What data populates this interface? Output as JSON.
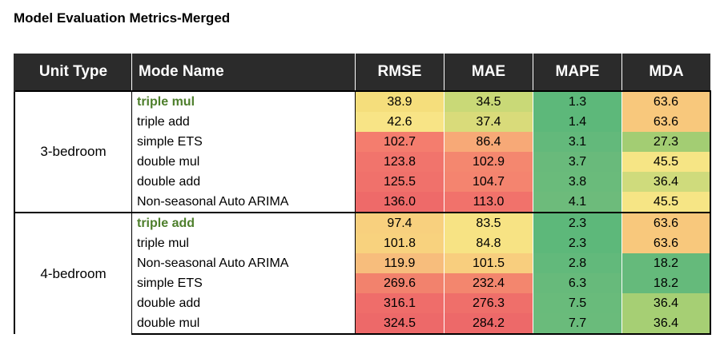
{
  "title": "Model Evaluation Metrics-Merged",
  "columns": [
    "Unit Type",
    "Mode Name",
    "RMSE",
    "MAE",
    "MAPE",
    "MDA"
  ],
  "groups": [
    {
      "unit": "3-bedroom",
      "rows": [
        {
          "mode": "triple mul",
          "best": true,
          "values": [
            "38.9",
            "34.5",
            "1.3",
            "63.6"
          ],
          "colors": [
            "#f5de7c",
            "#c9d977",
            "#5db87a",
            "#f8c87c"
          ]
        },
        {
          "mode": "triple add",
          "best": false,
          "values": [
            "42.6",
            "37.4",
            "1.4",
            "63.6"
          ],
          "colors": [
            "#f8e486",
            "#d9db7a",
            "#5db87a",
            "#f8c87c"
          ]
        },
        {
          "mode": "simple ETS",
          "best": false,
          "values": [
            "102.7",
            "86.4",
            "3.1",
            "27.3"
          ],
          "colors": [
            "#f47d6e",
            "#f7a977",
            "#63b97b",
            "#a3cd73"
          ]
        },
        {
          "mode": "double mul",
          "best": false,
          "values": [
            "123.8",
            "102.9",
            "3.7",
            "45.5"
          ],
          "colors": [
            "#f1746c",
            "#f4876f",
            "#69ba7b",
            "#f6e585"
          ]
        },
        {
          "mode": "double add",
          "best": false,
          "values": [
            "125.5",
            "104.7",
            "3.8",
            "36.4"
          ],
          "colors": [
            "#f0716b",
            "#f4846f",
            "#6abb7b",
            "#cfdb7c"
          ]
        },
        {
          "mode": "Non-seasonal Auto ARIMA",
          "best": false,
          "values": [
            "136.0",
            "113.0",
            "4.1",
            "45.5"
          ],
          "colors": [
            "#ee6a69",
            "#f1726b",
            "#6dbb7b",
            "#f6e585"
          ]
        }
      ]
    },
    {
      "unit": "4-bedroom",
      "rows": [
        {
          "mode": "triple add",
          "best": true,
          "values": [
            "97.4",
            "83.5",
            "2.3",
            "63.6"
          ],
          "colors": [
            "#f8d07e",
            "#f7e384",
            "#5db87a",
            "#f8c87c"
          ]
        },
        {
          "mode": "triple mul",
          "best": false,
          "values": [
            "101.8",
            "84.8",
            "2.3",
            "63.6"
          ],
          "colors": [
            "#f8d27e",
            "#f7e384",
            "#5db87a",
            "#f8c87c"
          ]
        },
        {
          "mode": "Non-seasonal Auto ARIMA",
          "best": false,
          "values": [
            "119.9",
            "101.5",
            "2.8",
            "18.2"
          ],
          "colors": [
            "#f7bd7c",
            "#f8ce7e",
            "#62b97b",
            "#65ba7b"
          ]
        },
        {
          "mode": "simple ETS",
          "best": false,
          "values": [
            "269.6",
            "232.4",
            "6.3",
            "18.2"
          ],
          "colors": [
            "#f2826d",
            "#f3866e",
            "#67ba7b",
            "#65ba7b"
          ]
        },
        {
          "mode": "double add",
          "best": false,
          "values": [
            "316.1",
            "276.3",
            "7.5",
            "36.4"
          ],
          "colors": [
            "#ef6d6a",
            "#ef6f6a",
            "#69bb7b",
            "#a6cf74"
          ]
        },
        {
          "mode": "double mul",
          "best": false,
          "values": [
            "324.5",
            "284.2",
            "7.7",
            "36.4"
          ],
          "colors": [
            "#ed6969",
            "#ed6969",
            "#6abb7b",
            "#a6cf74"
          ]
        }
      ]
    }
  ]
}
